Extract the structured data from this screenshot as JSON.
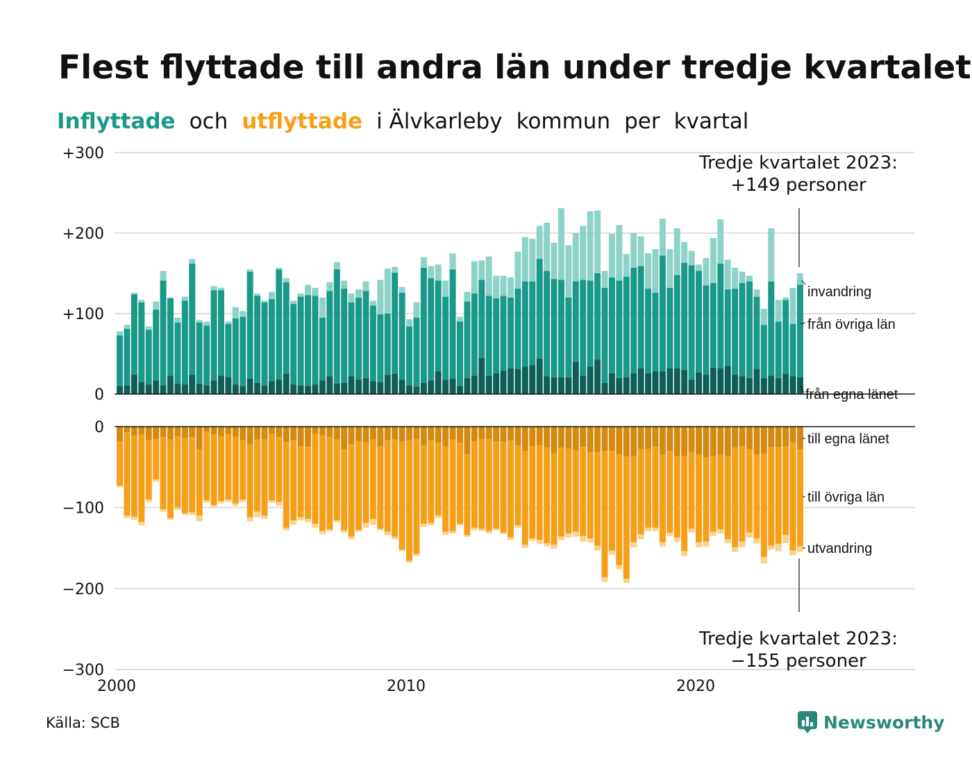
{
  "title": "Flest flyttade till andra län under tredje kvartalet",
  "subtitle": {
    "part1": "Inflyttade",
    "part2": "och",
    "part3": "utflyttade",
    "part4": "i Älvkarleby",
    "part5": "kommun",
    "part6": "per",
    "part7": "kvartal"
  },
  "source": "Källa: SCB",
  "brand": "Newsworthy",
  "colors": {
    "in_egna": "#0e5e55",
    "in_ovriga": "#1a9988",
    "in_invandring": "#8fd3c8",
    "out_egna": "#d48a12",
    "out_ovriga": "#f6a01a",
    "out_utvandring": "#fcd28c",
    "grid": "#dddddd"
  },
  "annotations": {
    "top_line1": "Tredje kvartalet 2023:",
    "top_line2": "+149 personer",
    "bottom_line1": "Tredje kvartalet 2023:",
    "bottom_line2": "−155 personer"
  },
  "chart_data": {
    "type": "bar",
    "stacked": true,
    "x_ticks": [
      "2000",
      "2010",
      "2020"
    ],
    "ylim_in": [
      0,
      300
    ],
    "ylim_out": [
      -300,
      0
    ],
    "y_ticks_in": [
      "+300",
      "+200",
      "+100",
      "0"
    ],
    "y_ticks_out": [
      "0",
      "−100",
      "−200",
      "−300"
    ],
    "grid": true,
    "x_start": 2000,
    "quarters_per_year": 4,
    "inflyttade_labels": [
      "invandring",
      "från övriga län",
      "från egna länet"
    ],
    "utflyttade_labels": [
      "till egna länet",
      "till övriga län",
      "utvandring"
    ],
    "series_in": [
      {
        "name": "från egna länet",
        "values": [
          10,
          11,
          24,
          15,
          12,
          17,
          11,
          23,
          13,
          12,
          24,
          13,
          11,
          17,
          23,
          21,
          12,
          10,
          19,
          14,
          11,
          16,
          18,
          25,
          12,
          11,
          10,
          12,
          17,
          22,
          13,
          14,
          22,
          18,
          20,
          16,
          15,
          24,
          25,
          18,
          11,
          9,
          14,
          17,
          28,
          18,
          19,
          10,
          20,
          23,
          45,
          23,
          26,
          29,
          32,
          31,
          34,
          36,
          44,
          22,
          21,
          21,
          21,
          40,
          23,
          34,
          43,
          14,
          26,
          20,
          21,
          26,
          32,
          26,
          28,
          28,
          32,
          32,
          30,
          18,
          27,
          24,
          33,
          32,
          35,
          24,
          22,
          20,
          31,
          20,
          23,
          20,
          25,
          22,
          21
        ],
        "unit": "personer"
      },
      {
        "name": "från övriga län",
        "values": [
          63,
          70,
          100,
          99,
          68,
          88,
          130,
          96,
          76,
          104,
          138,
          76,
          74,
          112,
          106,
          66,
          82,
          86,
          133,
          108,
          103,
          102,
          137,
          114,
          100,
          110,
          113,
          110,
          78,
          106,
          142,
          117,
          92,
          102,
          108,
          94,
          84,
          76,
          126,
          108,
          73,
          86,
          143,
          127,
          113,
          103,
          136,
          80,
          95,
          102,
          97,
          99,
          93,
          93,
          88,
          100,
          106,
          104,
          124,
          131,
          122,
          121,
          99,
          100,
          119,
          107,
          107,
          118,
          119,
          121,
          125,
          131,
          127,
          105,
          98,
          144,
          100,
          116,
          133,
          142,
          126,
          111,
          105,
          130,
          95,
          107,
          116,
          120,
          90,
          66,
          117,
          70,
          92,
          65,
          115
        ]
      },
      {
        "name": "invandring",
        "values": [
          5,
          5,
          2,
          3,
          4,
          10,
          12,
          1,
          6,
          5,
          6,
          3,
          5,
          5,
          3,
          3,
          14,
          7,
          3,
          3,
          2,
          9,
          2,
          5,
          4,
          4,
          13,
          10,
          25,
          11,
          9,
          10,
          11,
          10,
          12,
          6,
          43,
          56,
          7,
          7,
          9,
          19,
          13,
          15,
          20,
          20,
          20,
          6,
          12,
          40,
          24,
          49,
          28,
          25,
          25,
          46,
          55,
          53,
          41,
          60,
          45,
          89,
          65,
          60,
          67,
          86,
          78,
          21,
          54,
          69,
          28,
          43,
          37,
          44,
          54,
          46,
          48,
          58,
          26,
          18,
          8,
          34,
          56,
          55,
          37,
          26,
          14,
          7,
          9,
          20,
          66,
          27,
          3,
          45,
          14
        ]
      }
    ],
    "series_out": [
      {
        "name": "till egna länet",
        "values": [
          -18,
          -7,
          -11,
          -10,
          -17,
          -15,
          -13,
          -16,
          -12,
          -14,
          -13,
          -28,
          -6,
          -9,
          -12,
          -9,
          -12,
          -17,
          -21,
          -16,
          -16,
          -9,
          -13,
          -19,
          -17,
          -24,
          -25,
          -9,
          -11,
          -13,
          -16,
          -28,
          -22,
          -18,
          -20,
          -16,
          -24,
          -17,
          -16,
          -18,
          -17,
          -15,
          -23,
          -17,
          -20,
          -24,
          -16,
          -20,
          -34,
          -18,
          -15,
          -15,
          -18,
          -19,
          -17,
          -23,
          -30,
          -24,
          -23,
          -26,
          -33,
          -26,
          -27,
          -29,
          -25,
          -32,
          -32,
          -30,
          -30,
          -34,
          -37,
          -37,
          -28,
          -27,
          -25,
          -35,
          -30,
          -37,
          -36,
          -32,
          -35,
          -38,
          -36,
          -35,
          -36,
          -26,
          -24,
          -28,
          -35,
          -33,
          -25,
          -25,
          -24,
          -20,
          -28
        ]
      },
      {
        "name": "till övriga län",
        "values": [
          -55,
          -103,
          -100,
          -108,
          -73,
          -50,
          -89,
          -97,
          -88,
          -93,
          -93,
          -82,
          -85,
          -88,
          -80,
          -81,
          -83,
          -73,
          -91,
          -89,
          -94,
          -82,
          -80,
          -106,
          -99,
          -88,
          -89,
          -111,
          -118,
          -114,
          -100,
          -100,
          -114,
          -110,
          -99,
          -98,
          -102,
          -113,
          -120,
          -134,
          -149,
          -142,
          -97,
          -102,
          -90,
          -106,
          -113,
          -100,
          -100,
          -107,
          -111,
          -114,
          -108,
          -112,
          -120,
          -99,
          -116,
          -114,
          -117,
          -118,
          -113,
          -110,
          -105,
          -101,
          -110,
          -106,
          -115,
          -156,
          -123,
          -137,
          -151,
          -106,
          -105,
          -98,
          -100,
          -108,
          -101,
          -100,
          -118,
          -94,
          -108,
          -104,
          -94,
          -92,
          -103,
          -123,
          -118,
          -103,
          -103,
          -128,
          -122,
          -120,
          -110,
          -133,
          -120
        ]
      },
      {
        "name": "utvandring",
        "values": [
          -2,
          -3,
          -4,
          -4,
          -3,
          -3,
          -3,
          -2,
          -3,
          -2,
          -3,
          -7,
          -3,
          -2,
          -3,
          -3,
          -3,
          -3,
          -5,
          -7,
          -4,
          -3,
          -5,
          -3,
          -5,
          -4,
          -4,
          -5,
          -4,
          -2,
          -2,
          -3,
          -3,
          -2,
          -6,
          -7,
          -2,
          -4,
          -3,
          -2,
          -2,
          -3,
          -4,
          -3,
          -3,
          -4,
          -3,
          -2,
          -2,
          -3,
          -3,
          -3,
          -2,
          -2,
          -3,
          -3,
          -4,
          -3,
          -5,
          -4,
          -5,
          -4,
          -5,
          -6,
          -7,
          -5,
          -6,
          -6,
          -5,
          -5,
          -5,
          -6,
          -6,
          -4,
          -4,
          -5,
          -4,
          -5,
          -6,
          -5,
          -6,
          -6,
          -5,
          -5,
          -5,
          -6,
          -7,
          -6,
          -6,
          -8,
          -5,
          -9,
          -10,
          -6,
          -7
        ]
      }
    ]
  }
}
